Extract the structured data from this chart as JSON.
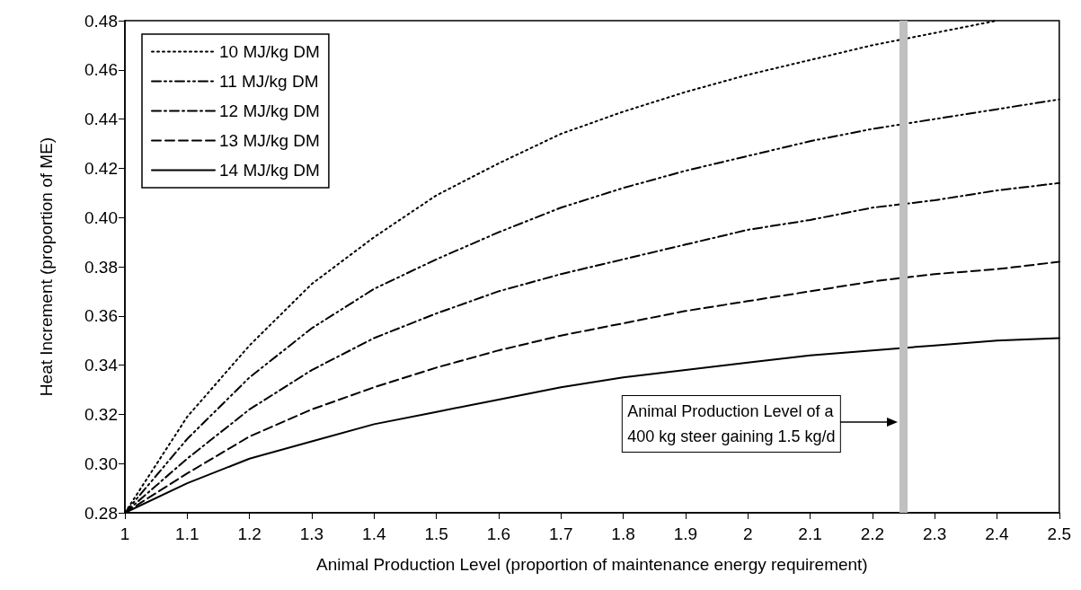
{
  "chart_data": {
    "type": "line",
    "xlabel": "Animal Production Level (proportion of maintenance energy requirement)",
    "ylabel": "Heat Increment (proportion of ME)",
    "x": [
      1,
      1.1,
      1.2,
      1.3,
      1.4,
      1.5,
      1.6,
      1.7,
      1.8,
      1.9,
      2,
      2.1,
      2.2,
      2.3,
      2.4,
      2.5
    ],
    "series": [
      {
        "name": "10 MJ/kg DM",
        "color": "#000000",
        "line_style": "dotted",
        "values": [
          0.28,
          0.319,
          0.348,
          0.373,
          0.392,
          0.409,
          0.422,
          0.434,
          0.443,
          0.451,
          0.458,
          0.464,
          0.47,
          0.475,
          0.48,
          null
        ]
      },
      {
        "name": "11 MJ/kg DM",
        "color": "#000000",
        "line_style": "dashdotdot",
        "values": [
          0.28,
          0.31,
          0.335,
          0.355,
          0.371,
          0.383,
          0.394,
          0.404,
          0.412,
          0.419,
          0.425,
          0.431,
          0.436,
          0.44,
          0.444,
          0.448
        ]
      },
      {
        "name": "12 MJ/kg DM",
        "color": "#000000",
        "line_style": "dashdot",
        "values": [
          0.28,
          0.302,
          0.322,
          0.338,
          0.351,
          0.361,
          0.37,
          0.377,
          0.383,
          0.389,
          0.395,
          0.399,
          0.404,
          0.407,
          0.411,
          0.414
        ]
      },
      {
        "name": "13 MJ/kg DM",
        "color": "#000000",
        "line_style": "dashed",
        "values": [
          0.28,
          0.296,
          0.311,
          0.322,
          0.331,
          0.339,
          0.346,
          0.352,
          0.357,
          0.362,
          0.366,
          0.37,
          0.374,
          0.377,
          0.379,
          0.382
        ]
      },
      {
        "name": "14 MJ/kg DM",
        "color": "#000000",
        "line_style": "solid",
        "values": [
          0.28,
          0.292,
          0.302,
          0.309,
          0.316,
          0.321,
          0.326,
          0.331,
          0.335,
          0.338,
          0.341,
          0.344,
          0.346,
          0.348,
          0.35,
          0.351
        ]
      }
    ],
    "xlim": [
      1,
      2.5
    ],
    "xticks": [
      1,
      1.1,
      1.2,
      1.3,
      1.4,
      1.5,
      1.6,
      1.7,
      1.8,
      1.9,
      2,
      2.1,
      2.2,
      2.3,
      2.4,
      2.5
    ],
    "ylim": [
      0.28,
      0.48
    ],
    "yticks": [
      0.28,
      {
        "value": 0.3,
        "label": "0.30"
      },
      0.32,
      0.34,
      0.36,
      0.38,
      {
        "value": 0.4,
        "label": "0.40"
      },
      0.42,
      0.44,
      0.46,
      0.48
    ],
    "ref_lines": [
      {
        "axis": "x",
        "value": 2.25,
        "color": "#c0c0c0"
      }
    ],
    "annotations": [
      "Animal Production Level of a\n400 kg steer gaining 1.5 kg/d"
    ],
    "legend": "top left",
    "grid": false,
    "marker": "none"
  }
}
